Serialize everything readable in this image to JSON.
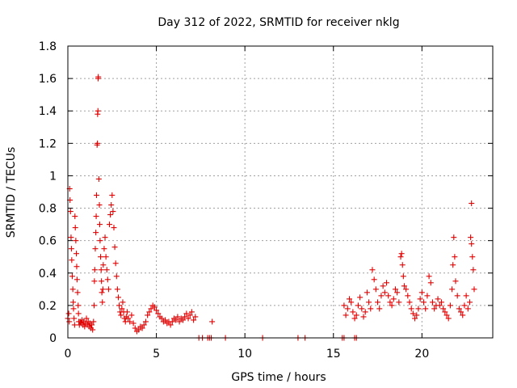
{
  "chart_data": {
    "type": "scatter",
    "title": "Day 312 of 2022, SRMTID for receiver nklg",
    "xlabel": "GPS time / hours",
    "ylabel": "SRMTID / TECUs",
    "xlim": [
      0,
      24
    ],
    "ylim": [
      0,
      1.8
    ],
    "grid": true,
    "marker": "plus",
    "color": "#e00000",
    "xticks": [
      0,
      5,
      10,
      15,
      20
    ],
    "xtick_labels": [
      "0",
      "5",
      "10",
      "15",
      "20"
    ],
    "yticks": [
      0,
      0.2,
      0.4,
      0.6,
      0.8,
      1.0,
      1.2,
      1.4,
      1.6,
      1.8
    ],
    "ytick_labels": [
      "0",
      "0.2",
      "0.4",
      "0.6",
      "0.8",
      "1",
      "1.2",
      "1.4",
      "1.6",
      "1.8"
    ],
    "series": [
      {
        "name": "SRMTID",
        "points": [
          [
            0.0,
            0.12
          ],
          [
            0.05,
            0.15
          ],
          [
            0.08,
            0.1
          ],
          [
            0.1,
            0.92
          ],
          [
            0.12,
            0.85
          ],
          [
            0.15,
            0.78
          ],
          [
            0.18,
            0.62
          ],
          [
            0.2,
            0.55
          ],
          [
            0.22,
            0.48
          ],
          [
            0.25,
            0.38
          ],
          [
            0.28,
            0.3
          ],
          [
            0.3,
            0.22
          ],
          [
            0.32,
            0.18
          ],
          [
            0.35,
            0.12
          ],
          [
            0.38,
            0.08
          ],
          [
            0.4,
            0.75
          ],
          [
            0.42,
            0.68
          ],
          [
            0.45,
            0.6
          ],
          [
            0.48,
            0.52
          ],
          [
            0.5,
            0.44
          ],
          [
            0.52,
            0.36
          ],
          [
            0.55,
            0.28
          ],
          [
            0.58,
            0.2
          ],
          [
            0.6,
            0.15
          ],
          [
            0.62,
            0.1
          ],
          [
            0.65,
            0.08
          ],
          [
            0.7,
            0.1
          ],
          [
            0.75,
            0.09
          ],
          [
            0.8,
            0.11
          ],
          [
            0.85,
            0.08
          ],
          [
            0.9,
            0.1
          ],
          [
            0.95,
            0.07
          ],
          [
            1.0,
            0.09
          ],
          [
            1.05,
            0.12
          ],
          [
            1.1,
            0.08
          ],
          [
            1.15,
            0.1
          ],
          [
            1.2,
            0.07
          ],
          [
            1.25,
            0.09
          ],
          [
            1.3,
            0.06
          ],
          [
            1.35,
            0.08
          ],
          [
            1.4,
            0.05
          ],
          [
            1.45,
            0.1
          ],
          [
            1.48,
            0.2
          ],
          [
            1.5,
            0.35
          ],
          [
            1.52,
            0.42
          ],
          [
            1.55,
            0.55
          ],
          [
            1.58,
            0.65
          ],
          [
            1.6,
            0.75
          ],
          [
            1.62,
            0.88
          ],
          [
            1.65,
            1.19
          ],
          [
            1.67,
            1.2
          ],
          [
            1.68,
            1.38
          ],
          [
            1.7,
            1.4
          ],
          [
            1.71,
            1.6
          ],
          [
            1.72,
            1.61
          ],
          [
            1.75,
            0.98
          ],
          [
            1.78,
            0.82
          ],
          [
            1.8,
            0.7
          ],
          [
            1.82,
            0.6
          ],
          [
            1.85,
            0.5
          ],
          [
            1.88,
            0.42
          ],
          [
            1.9,
            0.35
          ],
          [
            1.92,
            0.28
          ],
          [
            1.95,
            0.22
          ],
          [
            1.98,
            0.3
          ],
          [
            2.0,
            0.45
          ],
          [
            2.05,
            0.55
          ],
          [
            2.1,
            0.62
          ],
          [
            2.15,
            0.5
          ],
          [
            2.2,
            0.42
          ],
          [
            2.25,
            0.36
          ],
          [
            2.3,
            0.3
          ],
          [
            2.35,
            0.7
          ],
          [
            2.4,
            0.76
          ],
          [
            2.45,
            0.82
          ],
          [
            2.5,
            0.88
          ],
          [
            2.55,
            0.78
          ],
          [
            2.6,
            0.68
          ],
          [
            2.65,
            0.56
          ],
          [
            2.7,
            0.46
          ],
          [
            2.75,
            0.38
          ],
          [
            2.8,
            0.3
          ],
          [
            2.85,
            0.25
          ],
          [
            2.9,
            0.2
          ],
          [
            2.95,
            0.16
          ],
          [
            3.0,
            0.14
          ],
          [
            3.05,
            0.18
          ],
          [
            3.1,
            0.22
          ],
          [
            3.15,
            0.16
          ],
          [
            3.2,
            0.12
          ],
          [
            3.25,
            0.1
          ],
          [
            3.3,
            0.13
          ],
          [
            3.35,
            0.16
          ],
          [
            3.4,
            0.12
          ],
          [
            3.5,
            0.1
          ],
          [
            3.6,
            0.14
          ],
          [
            3.7,
            0.09
          ],
          [
            3.8,
            0.06
          ],
          [
            3.9,
            0.04
          ],
          [
            4.0,
            0.05
          ],
          [
            4.1,
            0.07
          ],
          [
            4.2,
            0.06
          ],
          [
            4.3,
            0.08
          ],
          [
            4.4,
            0.1
          ],
          [
            4.5,
            0.14
          ],
          [
            4.6,
            0.16
          ],
          [
            4.7,
            0.18
          ],
          [
            4.8,
            0.2
          ],
          [
            4.9,
            0.19
          ],
          [
            5.0,
            0.17
          ],
          [
            5.1,
            0.15
          ],
          [
            5.2,
            0.13
          ],
          [
            5.3,
            0.12
          ],
          [
            5.4,
            0.1
          ],
          [
            5.5,
            0.11
          ],
          [
            5.6,
            0.09
          ],
          [
            5.7,
            0.1
          ],
          [
            5.8,
            0.08
          ],
          [
            5.9,
            0.1
          ],
          [
            6.0,
            0.12
          ],
          [
            6.1,
            0.11
          ],
          [
            6.2,
            0.13
          ],
          [
            6.3,
            0.1
          ],
          [
            6.4,
            0.12
          ],
          [
            6.5,
            0.11
          ],
          [
            6.6,
            0.13
          ],
          [
            6.7,
            0.15
          ],
          [
            6.8,
            0.12
          ],
          [
            6.9,
            0.14
          ],
          [
            7.0,
            0.16
          ],
          [
            7.1,
            0.11
          ],
          [
            7.2,
            0.13
          ],
          [
            7.4,
            0.0
          ],
          [
            7.6,
            0.0
          ],
          [
            7.9,
            0.0
          ],
          [
            8.0,
            0.0
          ],
          [
            8.1,
            0.0
          ],
          [
            8.15,
            0.1
          ],
          [
            8.9,
            0.0
          ],
          [
            11.0,
            0.0
          ],
          [
            13.0,
            0.0
          ],
          [
            13.4,
            0.0
          ],
          [
            15.5,
            0.0
          ],
          [
            15.6,
            0.0
          ],
          [
            16.2,
            0.0
          ],
          [
            16.3,
            0.0
          ],
          [
            15.6,
            0.2
          ],
          [
            15.7,
            0.14
          ],
          [
            15.8,
            0.18
          ],
          [
            15.9,
            0.24
          ],
          [
            16.0,
            0.22
          ],
          [
            16.1,
            0.16
          ],
          [
            16.2,
            0.12
          ],
          [
            16.3,
            0.14
          ],
          [
            16.4,
            0.2
          ],
          [
            16.5,
            0.25
          ],
          [
            16.6,
            0.18
          ],
          [
            16.7,
            0.13
          ],
          [
            16.8,
            0.16
          ],
          [
            16.9,
            0.28
          ],
          [
            17.0,
            0.22
          ],
          [
            17.1,
            0.18
          ],
          [
            17.2,
            0.42
          ],
          [
            17.3,
            0.36
          ],
          [
            17.4,
            0.3
          ],
          [
            17.5,
            0.22
          ],
          [
            17.6,
            0.18
          ],
          [
            17.7,
            0.26
          ],
          [
            17.8,
            0.32
          ],
          [
            17.9,
            0.28
          ],
          [
            18.0,
            0.34
          ],
          [
            18.1,
            0.26
          ],
          [
            18.2,
            0.22
          ],
          [
            18.3,
            0.2
          ],
          [
            18.4,
            0.24
          ],
          [
            18.5,
            0.3
          ],
          [
            18.6,
            0.28
          ],
          [
            18.7,
            0.22
          ],
          [
            18.8,
            0.5
          ],
          [
            18.85,
            0.52
          ],
          [
            18.9,
            0.45
          ],
          [
            18.95,
            0.38
          ],
          [
            19.0,
            0.32
          ],
          [
            19.1,
            0.3
          ],
          [
            19.2,
            0.26
          ],
          [
            19.3,
            0.22
          ],
          [
            19.4,
            0.18
          ],
          [
            19.5,
            0.15
          ],
          [
            19.6,
            0.12
          ],
          [
            19.7,
            0.14
          ],
          [
            19.8,
            0.18
          ],
          [
            19.9,
            0.24
          ],
          [
            20.0,
            0.28
          ],
          [
            20.1,
            0.22
          ],
          [
            20.2,
            0.18
          ],
          [
            20.3,
            0.26
          ],
          [
            20.4,
            0.38
          ],
          [
            20.5,
            0.34
          ],
          [
            20.6,
            0.22
          ],
          [
            20.7,
            0.18
          ],
          [
            20.8,
            0.2
          ],
          [
            20.9,
            0.24
          ],
          [
            21.0,
            0.2
          ],
          [
            21.1,
            0.22
          ],
          [
            21.2,
            0.18
          ],
          [
            21.3,
            0.16
          ],
          [
            21.4,
            0.14
          ],
          [
            21.5,
            0.12
          ],
          [
            21.6,
            0.2
          ],
          [
            21.7,
            0.3
          ],
          [
            21.75,
            0.45
          ],
          [
            21.8,
            0.62
          ],
          [
            21.85,
            0.5
          ],
          [
            21.9,
            0.35
          ],
          [
            22.0,
            0.26
          ],
          [
            22.1,
            0.18
          ],
          [
            22.2,
            0.16
          ],
          [
            22.3,
            0.14
          ],
          [
            22.4,
            0.2
          ],
          [
            22.5,
            0.26
          ],
          [
            22.6,
            0.18
          ],
          [
            22.7,
            0.22
          ],
          [
            22.75,
            0.62
          ],
          [
            22.8,
            0.58
          ],
          [
            22.85,
            0.5
          ],
          [
            22.9,
            0.42
          ],
          [
            22.95,
            0.3
          ],
          [
            22.8,
            0.83
          ]
        ]
      }
    ]
  }
}
